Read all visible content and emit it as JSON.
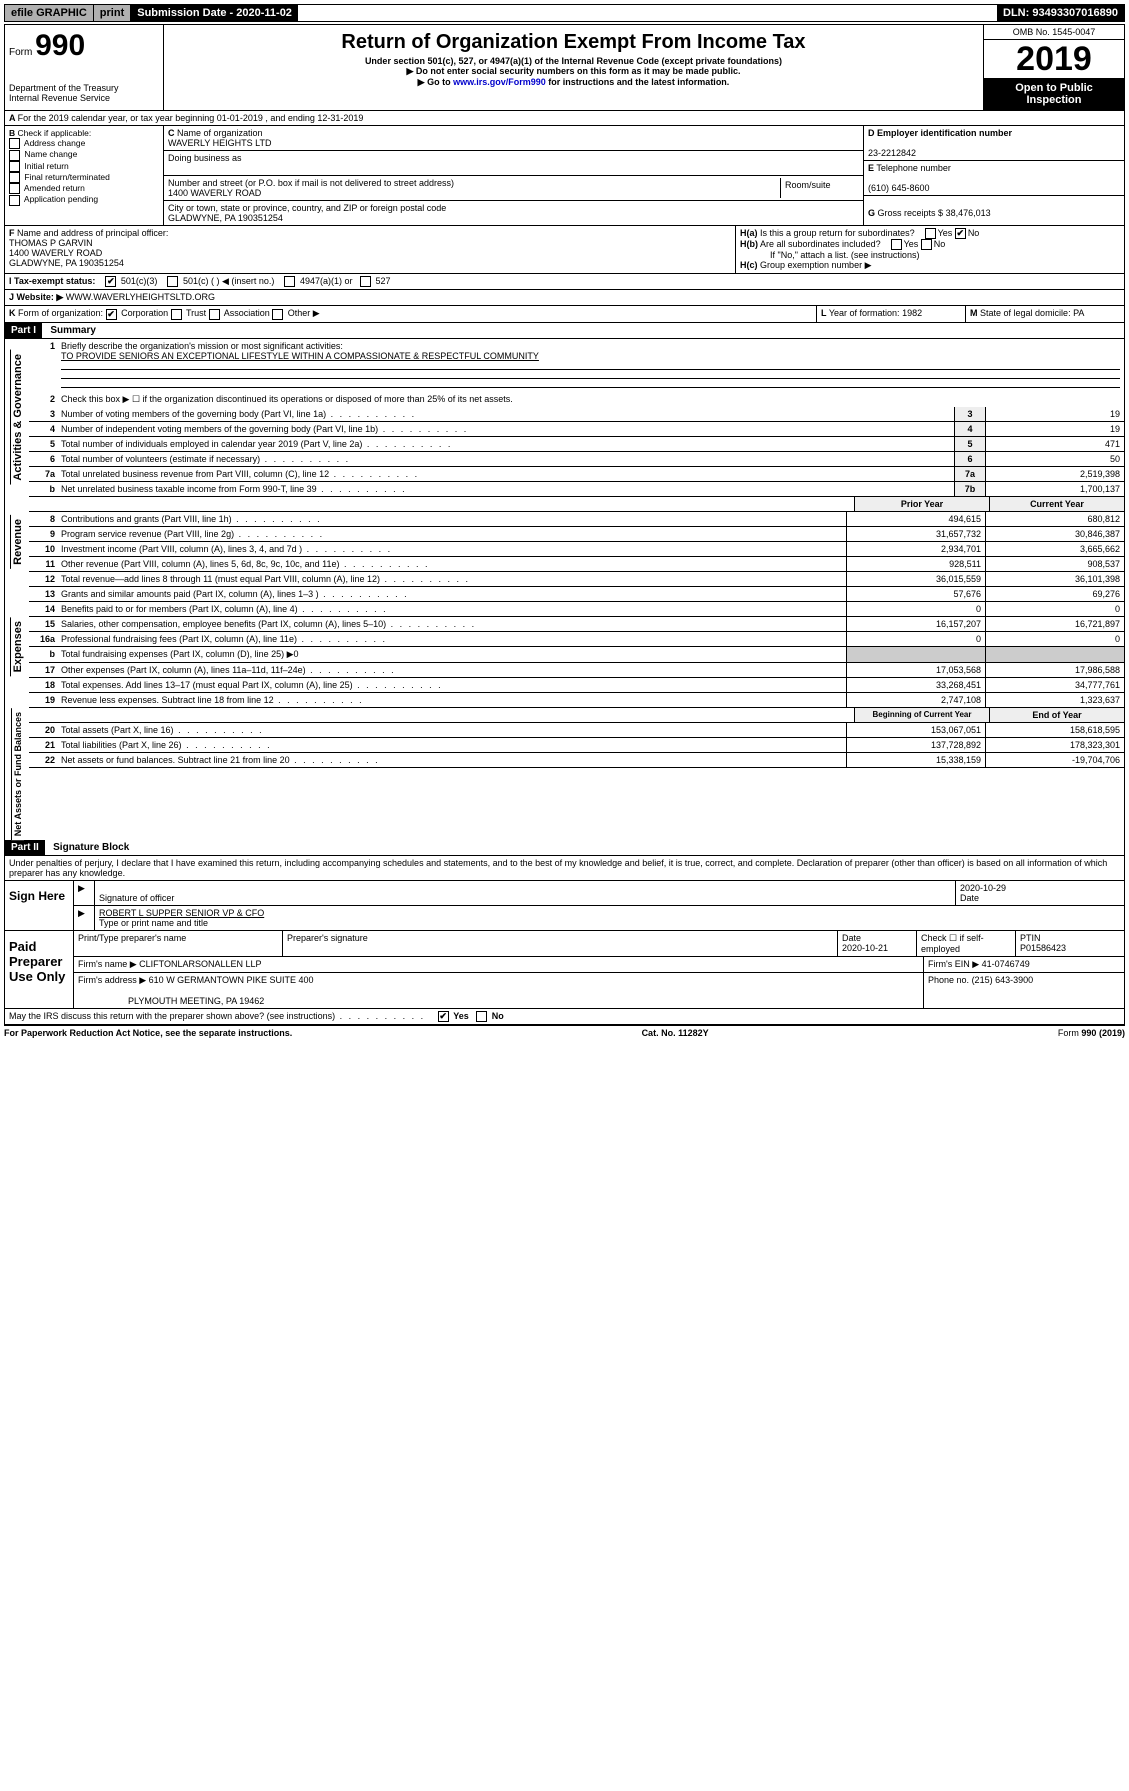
{
  "topbar": {
    "efile": "efile GRAPHIC",
    "print": "print",
    "subdate_label": "Submission Date - 2020-11-02",
    "dln": "DLN: 93493307016890"
  },
  "header": {
    "form_prefix": "Form",
    "form_no": "990",
    "dept": "Department of the Treasury",
    "irs": "Internal Revenue Service",
    "title": "Return of Organization Exempt From Income Tax",
    "sub1": "Under section 501(c), 527, or 4947(a)(1) of the Internal Revenue Code (except private foundations)",
    "sub2": "▶ Do not enter social security numbers on this form as it may be made public.",
    "sub3_pre": "▶ Go to ",
    "sub3_link": "www.irs.gov/Form990",
    "sub3_post": " for instructions and the latest information.",
    "omb": "OMB No. 1545-0047",
    "year": "2019",
    "badge1": "Open to Public",
    "badge2": "Inspection"
  },
  "A": "For the 2019 calendar year, or tax year beginning 01-01-2019   , and ending 12-31-2019",
  "B": {
    "label": "Check if applicable:",
    "opts": [
      "Address change",
      "Name change",
      "Initial return",
      "Final return/terminated",
      "Amended return",
      "Application pending"
    ]
  },
  "C": {
    "name_label": "Name of organization",
    "name": "WAVERLY HEIGHTS LTD",
    "dba_label": "Doing business as",
    "addr_label": "Number and street (or P.O. box if mail is not delivered to street address)",
    "room_label": "Room/suite",
    "addr": "1400 WAVERLY ROAD",
    "city_label": "City or town, state or province, country, and ZIP or foreign postal code",
    "city": "GLADWYNE, PA  190351254"
  },
  "D": {
    "label": "Employer identification number",
    "val": "23-2212842"
  },
  "E": {
    "label": "Telephone number",
    "val": "(610) 645-8600"
  },
  "G": {
    "label": "Gross receipts $",
    "val": "38,476,013"
  },
  "F": {
    "label": "Name and address of principal officer:",
    "name": "THOMAS P GARVIN",
    "addr1": "1400 WAVERLY ROAD",
    "addr2": "GLADWYNE, PA  190351254"
  },
  "H": {
    "a": "Is this a group return for subordinates?",
    "b": "Are all subordinates included?",
    "b2": "If \"No,\" attach a list. (see instructions)",
    "c": "Group exemption number ▶"
  },
  "I": {
    "label": "Tax-exempt status:",
    "c3": "501(c)(3)",
    "c": "501(c) (   ) ◀ (insert no.)",
    "a1": "4947(a)(1) or",
    "s527": "527"
  },
  "J": {
    "label": "Website: ▶",
    "val": "WWW.WAVERLYHEIGHTSLTD.ORG"
  },
  "K": {
    "label": "Form of organization:",
    "opts": [
      "Corporation",
      "Trust",
      "Association",
      "Other ▶"
    ]
  },
  "L": {
    "label": "Year of formation:",
    "val": "1982"
  },
  "M": {
    "label": "State of legal domicile:",
    "val": "PA"
  },
  "part1": {
    "title": "Part I",
    "sub": "Summary",
    "q1_label": "Briefly describe the organization's mission or most significant activities:",
    "q1_val": "TO PROVIDE SENIORS AN EXCEPTIONAL LIFESTYLE WITHIN A COMPASSIONATE & RESPECTFUL COMMUNITY",
    "q2": "Check this box ▶ ☐  if the organization discontinued its operations or disposed of more than 25% of its net assets.",
    "lines_single": [
      {
        "n": "3",
        "d": "Number of voting members of the governing body (Part VI, line 1a)",
        "c": "3",
        "v": "19"
      },
      {
        "n": "4",
        "d": "Number of independent voting members of the governing body (Part VI, line 1b)",
        "c": "4",
        "v": "19"
      },
      {
        "n": "5",
        "d": "Total number of individuals employed in calendar year 2019 (Part V, line 2a)",
        "c": "5",
        "v": "471"
      },
      {
        "n": "6",
        "d": "Total number of volunteers (estimate if necessary)",
        "c": "6",
        "v": "50"
      },
      {
        "n": "7a",
        "d": "Total unrelated business revenue from Part VIII, column (C), line 12",
        "c": "7a",
        "v": "2,519,398"
      },
      {
        "n": "b",
        "d": "Net unrelated business taxable income from Form 990-T, line 39",
        "c": "7b",
        "v": "1,700,137"
      }
    ],
    "hdr_prior": "Prior Year",
    "hdr_curr": "Current Year",
    "revenue": [
      {
        "n": "8",
        "d": "Contributions and grants (Part VIII, line 1h)",
        "p": "494,615",
        "c": "680,812"
      },
      {
        "n": "9",
        "d": "Program service revenue (Part VIII, line 2g)",
        "p": "31,657,732",
        "c": "30,846,387"
      },
      {
        "n": "10",
        "d": "Investment income (Part VIII, column (A), lines 3, 4, and 7d )",
        "p": "2,934,701",
        "c": "3,665,662"
      },
      {
        "n": "11",
        "d": "Other revenue (Part VIII, column (A), lines 5, 6d, 8c, 9c, 10c, and 11e)",
        "p": "928,511",
        "c": "908,537"
      },
      {
        "n": "12",
        "d": "Total revenue—add lines 8 through 11 (must equal Part VIII, column (A), line 12)",
        "p": "36,015,559",
        "c": "36,101,398"
      }
    ],
    "expenses": [
      {
        "n": "13",
        "d": "Grants and similar amounts paid (Part IX, column (A), lines 1–3 )",
        "p": "57,676",
        "c": "69,276"
      },
      {
        "n": "14",
        "d": "Benefits paid to or for members (Part IX, column (A), line 4)",
        "p": "0",
        "c": "0"
      },
      {
        "n": "15",
        "d": "Salaries, other compensation, employee benefits (Part IX, column (A), lines 5–10)",
        "p": "16,157,207",
        "c": "16,721,897"
      },
      {
        "n": "16a",
        "d": "Professional fundraising fees (Part IX, column (A), line 11e)",
        "p": "0",
        "c": "0"
      },
      {
        "n": "b",
        "d": "Total fundraising expenses (Part IX, column (D), line 25) ▶0",
        "p": "",
        "c": ""
      },
      {
        "n": "17",
        "d": "Other expenses (Part IX, column (A), lines 11a–11d, 11f–24e)",
        "p": "17,053,568",
        "c": "17,986,588"
      },
      {
        "n": "18",
        "d": "Total expenses. Add lines 13–17 (must equal Part IX, column (A), line 25)",
        "p": "33,268,451",
        "c": "34,777,761"
      },
      {
        "n": "19",
        "d": "Revenue less expenses. Subtract line 18 from line 12",
        "p": "2,747,108",
        "c": "1,323,637"
      }
    ],
    "hdr_begin": "Beginning of Current Year",
    "hdr_end": "End of Year",
    "netassets": [
      {
        "n": "20",
        "d": "Total assets (Part X, line 16)",
        "p": "153,067,051",
        "c": "158,618,595"
      },
      {
        "n": "21",
        "d": "Total liabilities (Part X, line 26)",
        "p": "137,728,892",
        "c": "178,323,301"
      },
      {
        "n": "22",
        "d": "Net assets or fund balances. Subtract line 21 from line 20",
        "p": "15,338,159",
        "c": "-19,704,706"
      }
    ],
    "vlabels": {
      "gov": "Activities & Governance",
      "rev": "Revenue",
      "exp": "Expenses",
      "net": "Net Assets or Fund Balances"
    }
  },
  "part2": {
    "title": "Part II",
    "sub": "Signature Block",
    "decl": "Under penalties of perjury, I declare that I have examined this return, including accompanying schedules and statements, and to the best of my knowledge and belief, it is true, correct, and complete. Declaration of preparer (other than officer) is based on all information of which preparer has any knowledge.",
    "sign_here": "Sign Here",
    "sig_officer": "Signature of officer",
    "sig_date": "2020-10-29",
    "sig_date_label": "Date",
    "officer_name": "ROBERT L SUPPER  SENIOR VP & CFO",
    "officer_sub": "Type or print name and title",
    "paid": "Paid Preparer Use Only",
    "prep_name_label": "Print/Type preparer's name",
    "prep_sig_label": "Preparer's signature",
    "prep_date_label": "Date",
    "prep_date": "2020-10-21",
    "self_emp": "Check ☐ if self-employed",
    "ptin_label": "PTIN",
    "ptin": "P01586423",
    "firm_name_label": "Firm's name    ▶",
    "firm_name": "CLIFTONLARSONALLEN LLP",
    "firm_ein_label": "Firm's EIN ▶",
    "firm_ein": "41-0746749",
    "firm_addr_label": "Firm's address ▶",
    "firm_addr1": "610 W GERMANTOWN PIKE SUITE 400",
    "firm_addr_city": "PLYMOUTH MEETING, PA  19462",
    "firm_phone_label": "Phone no.",
    "firm_phone": "(215) 643-3900",
    "discuss": "May the IRS discuss this return with the preparer shown above? (see instructions)"
  },
  "footer": {
    "left": "For Paperwork Reduction Act Notice, see the separate instructions.",
    "mid": "Cat. No. 11282Y",
    "right": "Form 990 (2019)"
  }
}
